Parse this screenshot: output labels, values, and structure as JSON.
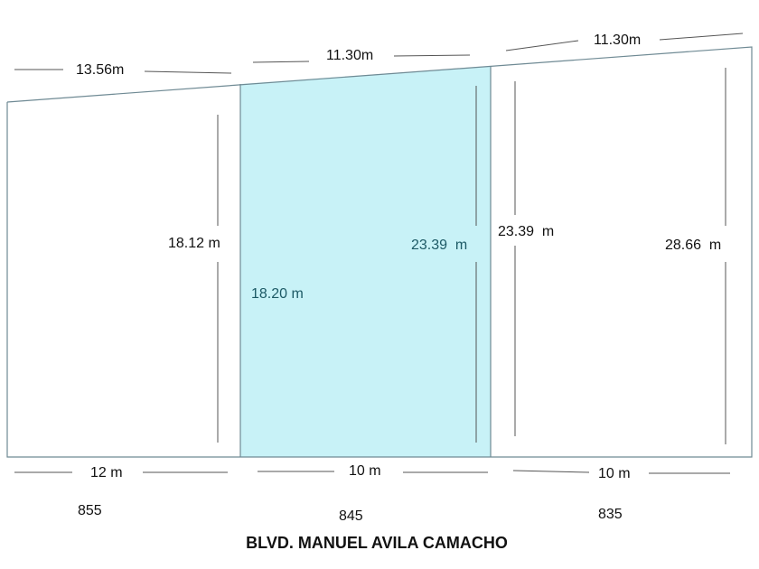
{
  "top_dimensions": [
    "13.56m",
    "11.30m",
    "11.30m"
  ],
  "side_dimensions": {
    "left_lot": "18.12 m",
    "middle_lot_left": "18.20 m",
    "middle_lot_right": "23.39  m",
    "right_lot_left": "23.39  m",
    "right_lot_right": "28.66  m"
  },
  "bottom_dimensions": [
    "12 m",
    "10 m",
    "10 m"
  ],
  "lot_numbers": [
    "855",
    "845",
    "835"
  ],
  "street_name": "BLVD. MANUEL AVILA CAMACHO",
  "colors": {
    "highlight_lot": "#c8f2f7",
    "outline": "#6f8a94",
    "teal_text": "#1d5a66"
  }
}
